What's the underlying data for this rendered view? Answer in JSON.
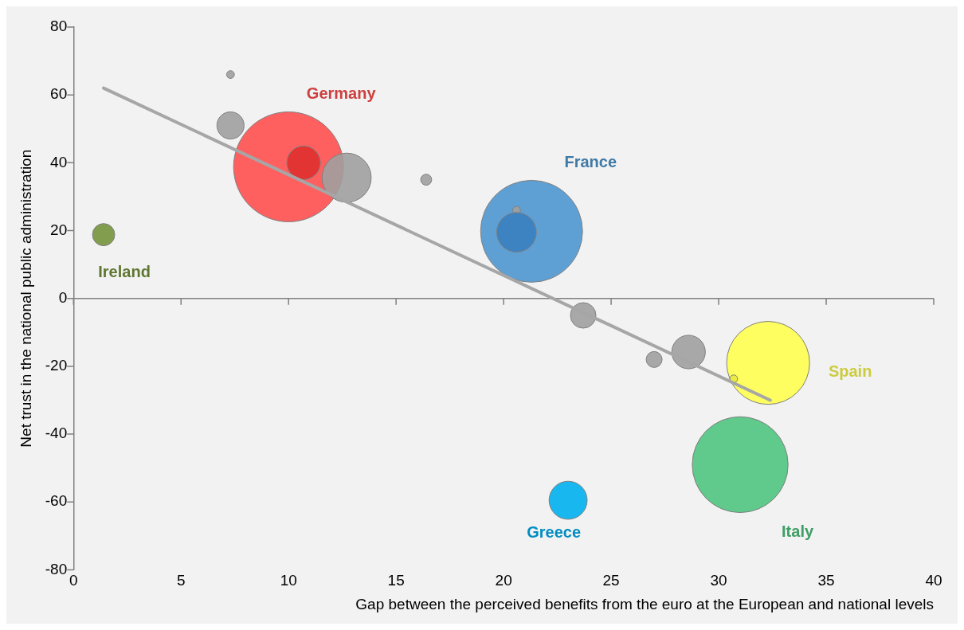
{
  "chart_data": {
    "type": "bubble",
    "xlabel": "Gap between the perceived benefits from the euro at the European and national levels",
    "ylabel": "Net trust in the national public administration",
    "xlim": [
      0,
      40
    ],
    "xticks": [
      0,
      5,
      10,
      15,
      20,
      25,
      30,
      35,
      40
    ],
    "ylim": [
      -80,
      80
    ],
    "yticks": [
      -80,
      -60,
      -40,
      -20,
      0,
      20,
      40,
      60,
      80
    ],
    "grid": false,
    "legend": false,
    "ref_lines": [
      {
        "axis": "y",
        "value": 0,
        "color": "#808080"
      }
    ],
    "series": [
      {
        "name": "Germany",
        "color": "#ff5050",
        "x": [
          10.0
        ],
        "values": [
          38.8
        ],
        "sizes": [
          1
        ]
      },
      {
        "name": "France",
        "color": "#4f97d0",
        "x": [
          21.3
        ],
        "values": [
          19.8
        ],
        "sizes": [
          0.86
        ]
      },
      {
        "name": "Ireland",
        "color": "#77933c",
        "x": [
          1.4
        ],
        "values": [
          18.8
        ],
        "sizes": [
          0.041
        ]
      },
      {
        "name": "Spain",
        "color": "#ffff50",
        "x": [
          32.3
        ],
        "values": [
          -19
        ],
        "sizes": [
          0.57
        ]
      },
      {
        "name": "Italy",
        "color": "#4fc580",
        "x": [
          31.0
        ],
        "values": [
          -49
        ],
        "sizes": [
          0.76
        ]
      },
      {
        "name": "Greece",
        "color": "#00b0f0",
        "x": [
          23.0
        ],
        "values": [
          -59.5
        ],
        "sizes": [
          0.12
        ]
      },
      {
        "color": "#a0a0a0",
        "x": [
          7.3,
          7.3,
          12.7,
          16.4,
          20.6,
          23.7,
          27.0,
          28.6
        ],
        "values": [
          66,
          51,
          35.6,
          35,
          26,
          -5,
          -18,
          -15.8
        ],
        "sizes": [
          0.005,
          0.061,
          0.2,
          0.01,
          0.005,
          0.054,
          0.021,
          0.093
        ]
      },
      {
        "color": "#e03030",
        "x": [
          10.7
        ],
        "values": [
          40
        ],
        "sizes": [
          0.093
        ]
      },
      {
        "color": "#3a80c0",
        "x": [
          20.6
        ],
        "values": [
          19.5
        ],
        "sizes": [
          0.13
        ]
      },
      {
        "color": "#e8e840",
        "x": [
          30.7
        ],
        "values": [
          -23.7
        ],
        "sizes": [
          0.005
        ]
      },
      {
        "type": "line",
        "color": "#a6a6a6",
        "x": [
          1.4,
          32.4
        ],
        "values": [
          62,
          -30
        ],
        "marker": "none"
      }
    ]
  }
}
